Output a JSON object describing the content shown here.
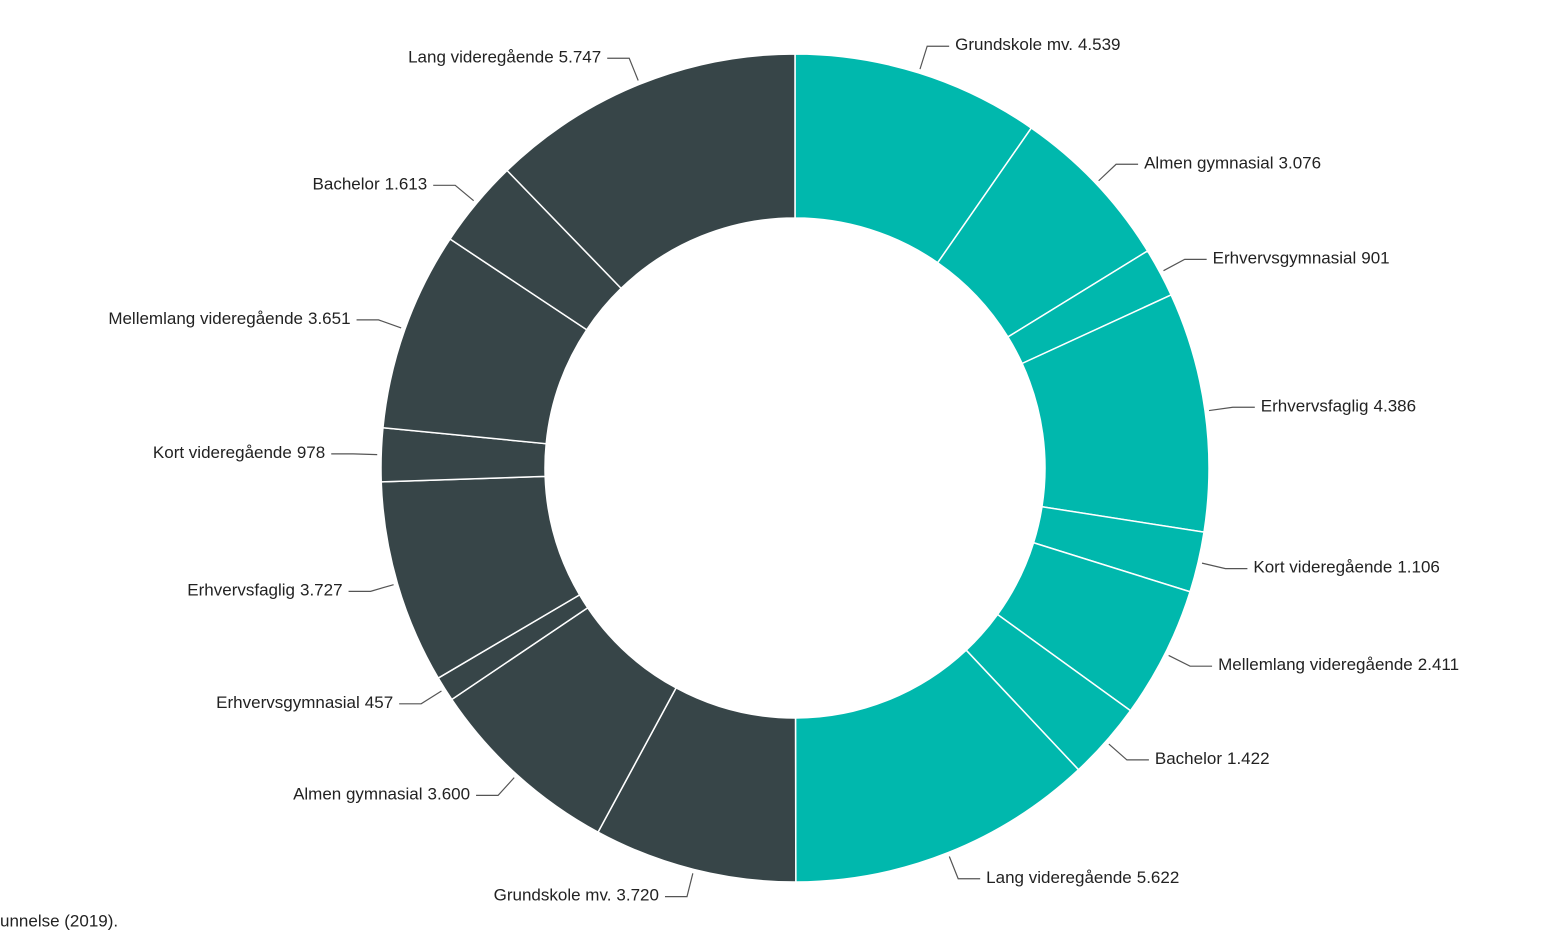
{
  "chart_data": {
    "type": "donut",
    "categories": [
      "Grundskole mv.",
      "Almen gymnasial",
      "Erhvervsgymnasial",
      "Erhvervsfaglig",
      "Kort videregående",
      "Mellemlang videregående",
      "Bachelor",
      "Lang videregående",
      "Grundskole mv.",
      "Almen gymnasial",
      "Erhvervsgymnasial",
      "Erhvervsfaglig",
      "Kort videregående",
      "Mellemlang videregående",
      "Bachelor",
      "Lang videregående"
    ],
    "values": [
      4539,
      3076,
      901,
      4386,
      1106,
      2411,
      1422,
      5622,
      3720,
      3600,
      457,
      3727,
      978,
      3651,
      1613,
      5747
    ],
    "value_labels": [
      "4.539",
      "3.076",
      "901",
      "4.386",
      "1.106",
      "2.411",
      "1.422",
      "5.622",
      "3.720",
      "3.600",
      "457",
      "3.727",
      "978",
      "3.651",
      "1.613",
      "5.747"
    ],
    "colors": [
      "#00b8ad",
      "#00b8ad",
      "#00b8ad",
      "#00b8ad",
      "#00b8ad",
      "#00b8ad",
      "#00b8ad",
      "#00b8ad",
      "#374548",
      "#374548",
      "#374548",
      "#374548",
      "#374548",
      "#374548",
      "#374548",
      "#374548"
    ],
    "note": "unnelse (2019)."
  }
}
